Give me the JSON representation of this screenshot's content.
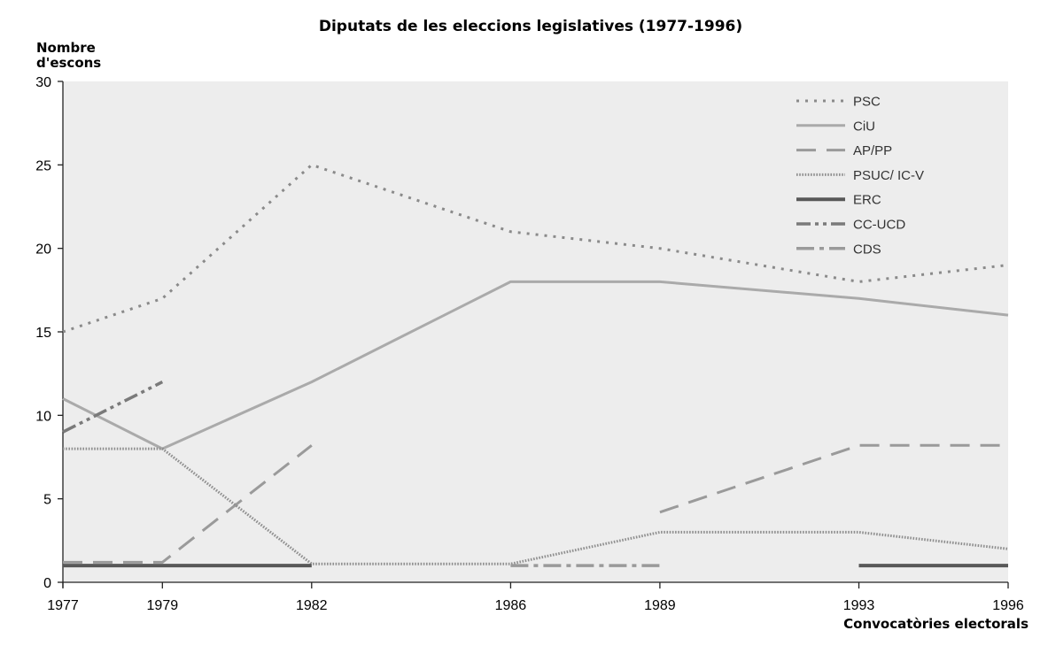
{
  "chart_data": {
    "type": "line",
    "title": "Diputats de les eleccions legislatives (1977-1996)",
    "ylabel": [
      "Nombre",
      "d'escons"
    ],
    "xlabel": "Convocatòries electorals",
    "categories": [
      "1977",
      "1979",
      "1982",
      "1986",
      "1989",
      "1993",
      "1996"
    ],
    "ylim": [
      0,
      30
    ],
    "yticks": [
      0,
      5,
      10,
      15,
      20,
      25,
      30
    ],
    "grid": false,
    "legend_position": "top-right",
    "series": [
      {
        "name": "PSC",
        "values": [
          15,
          17,
          25,
          21,
          20,
          18,
          19
        ],
        "color": "#8a8a8a",
        "dash": "dotted-wide"
      },
      {
        "name": "CiU",
        "values": [
          11,
          8,
          12,
          18,
          18,
          17,
          16
        ],
        "color": "#aaaaaa",
        "dash": "solid"
      },
      {
        "name": "AP/PP",
        "values": [
          1.2,
          1.2,
          8.2,
          null,
          4.2,
          8.2,
          8.2
        ],
        "color": "#9a9a9a",
        "dash": "dashed"
      },
      {
        "name": "PSUC/ IC-V",
        "values": [
          8,
          8,
          1.1,
          1.1,
          3,
          3,
          2
        ],
        "color": "#8f8f8f",
        "dash": "dotted-fine"
      },
      {
        "name": "ERC",
        "values": [
          1,
          1,
          1,
          null,
          null,
          1,
          1
        ],
        "color": "#585858",
        "dash": "solid-thick"
      },
      {
        "name": "CC-UCD",
        "values": [
          9,
          12,
          null,
          null,
          null,
          null,
          null
        ],
        "color": "#7a7a7a",
        "dash": "dash-dot-dot"
      },
      {
        "name": "CDS",
        "values": [
          null,
          null,
          null,
          1,
          1,
          null,
          null
        ],
        "color": "#9a9a9a",
        "dash": "dash-dot"
      }
    ]
  }
}
